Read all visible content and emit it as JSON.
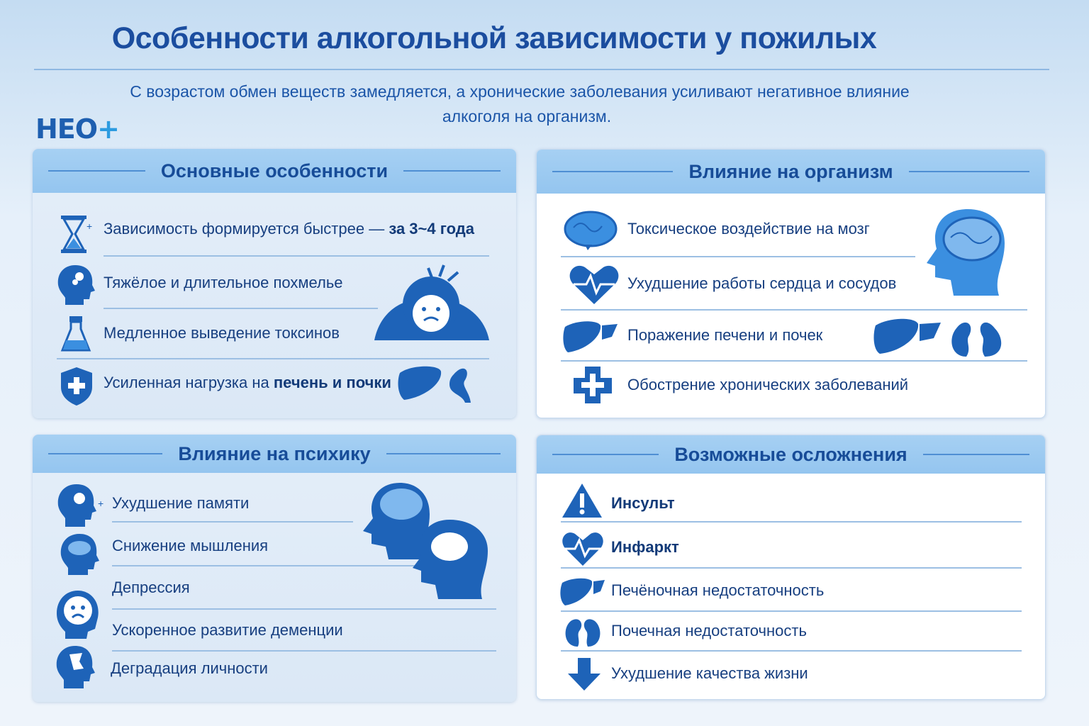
{
  "title": "Особенности алкогольной зависимости у пожилых",
  "subtitle": [
    "С возрастом обмен веществ замедляется, а хронические заболевания усиливают негативное влияние",
    "алкоголя на организм."
  ],
  "logo": {
    "text": "НЕО",
    "plus": "+"
  },
  "colors": {
    "primary": "#1b4d9f",
    "header": "#9ccbf0",
    "icon": "#1e63b8"
  },
  "panels": {
    "features": {
      "title": "Основные особенности",
      "items": [
        {
          "text": "Зависимость формируется быстрее — ",
          "bold": "за 3~4 года",
          "icon": "hourglass-icon"
        },
        {
          "text": "Тяжёлое и длительное похмелье",
          "bold": "",
          "icon": "head-icon"
        },
        {
          "text": "Медленное выведение токсинов",
          "bold": "",
          "icon": "flask-icon"
        },
        {
          "text": "Усиленная нагрузка на ",
          "bold": "печень и почки",
          "icon": "shield-cross-icon"
        }
      ]
    },
    "body": {
      "title": "Влияние на организм",
      "items": [
        {
          "text": "Токсическое воздействие на мозг",
          "icon": "brain-icon"
        },
        {
          "text": "Ухудшение работы сердца и сосудов",
          "icon": "heart-pulse-icon"
        },
        {
          "text": "Поражение печени и почек",
          "icon": "liver-icon"
        },
        {
          "text": "Обострение хронических заболеваний",
          "icon": "medical-cross-icon"
        }
      ]
    },
    "psyche": {
      "title": "Влияние на психику",
      "items": [
        {
          "text": "Ухудшение памяти",
          "icon": "head-memory-icon"
        },
        {
          "text": "Снижение мышления",
          "icon": "head-cloud-icon"
        },
        {
          "text": "Депрессия",
          "icon": "sad-face-icon"
        },
        {
          "text": "Ускоренное развитие деменции",
          "icon": "head-icon"
        },
        {
          "text": "Деградация личности",
          "icon": "head-broken-icon"
        }
      ]
    },
    "complications": {
      "title": "Возможные осложнения",
      "items": [
        {
          "text": "Инсульт",
          "bold": true,
          "icon": "warning-icon"
        },
        {
          "text": "Инфаркт",
          "bold": true,
          "icon": "heart-pulse-icon"
        },
        {
          "text": "Печёночная недостаточность",
          "bold": false,
          "icon": "liver-icon"
        },
        {
          "text": "Почечная недостаточность",
          "bold": false,
          "icon": "kidneys-icon"
        },
        {
          "text": "Ухудшение качества жизни",
          "bold": false,
          "icon": "arrow-down-icon"
        }
      ]
    }
  }
}
